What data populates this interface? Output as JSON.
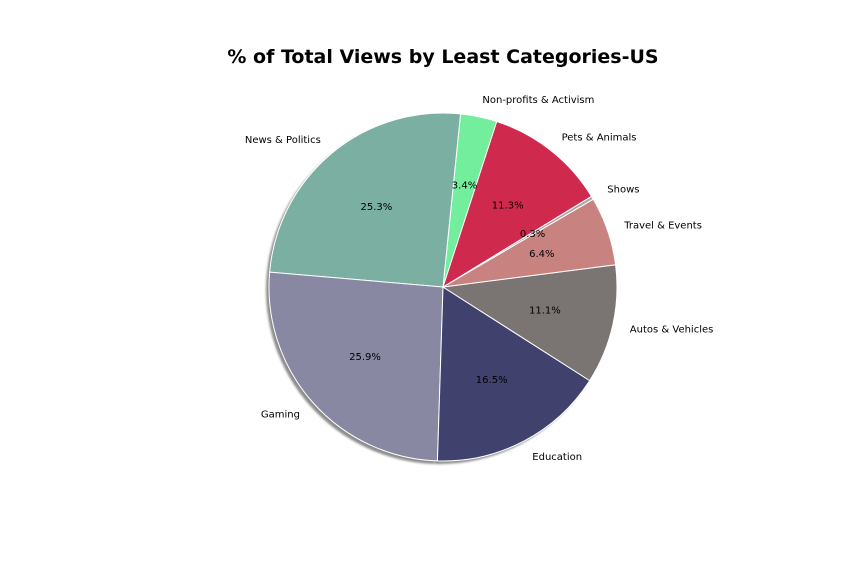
{
  "chart_data": {
    "type": "pie",
    "title": "% of Total Views by Least Categories-US",
    "slices": [
      {
        "label": "Non-profits & Activism",
        "value": 3.4,
        "pct_label": "3.4%",
        "color": "#72ee9c"
      },
      {
        "label": "News & Politics",
        "value": 25.3,
        "pct_label": "25.3%",
        "color": "#7aafa2"
      },
      {
        "label": "Gaming",
        "value": 25.9,
        "pct_label": "25.9%",
        "color": "#8888a2"
      },
      {
        "label": "Education",
        "value": 16.5,
        "pct_label": "16.5%",
        "color": "#41416e"
      },
      {
        "label": "Autos & Vehicles",
        "value": 11.1,
        "pct_label": "11.1%",
        "color": "#7a7572"
      },
      {
        "label": "Travel & Events",
        "value": 6.4,
        "pct_label": "6.4%",
        "color": "#c88380"
      },
      {
        "label": "Shows",
        "value": 0.3,
        "pct_label": "0.3%",
        "color": "#a8a8a8"
      },
      {
        "label": "Pets & Animals",
        "value": 11.3,
        "pct_label": "11.3%",
        "color": "#cf2a4e"
      }
    ],
    "shadow": true,
    "wedge_edge_color": "#ffffff"
  }
}
